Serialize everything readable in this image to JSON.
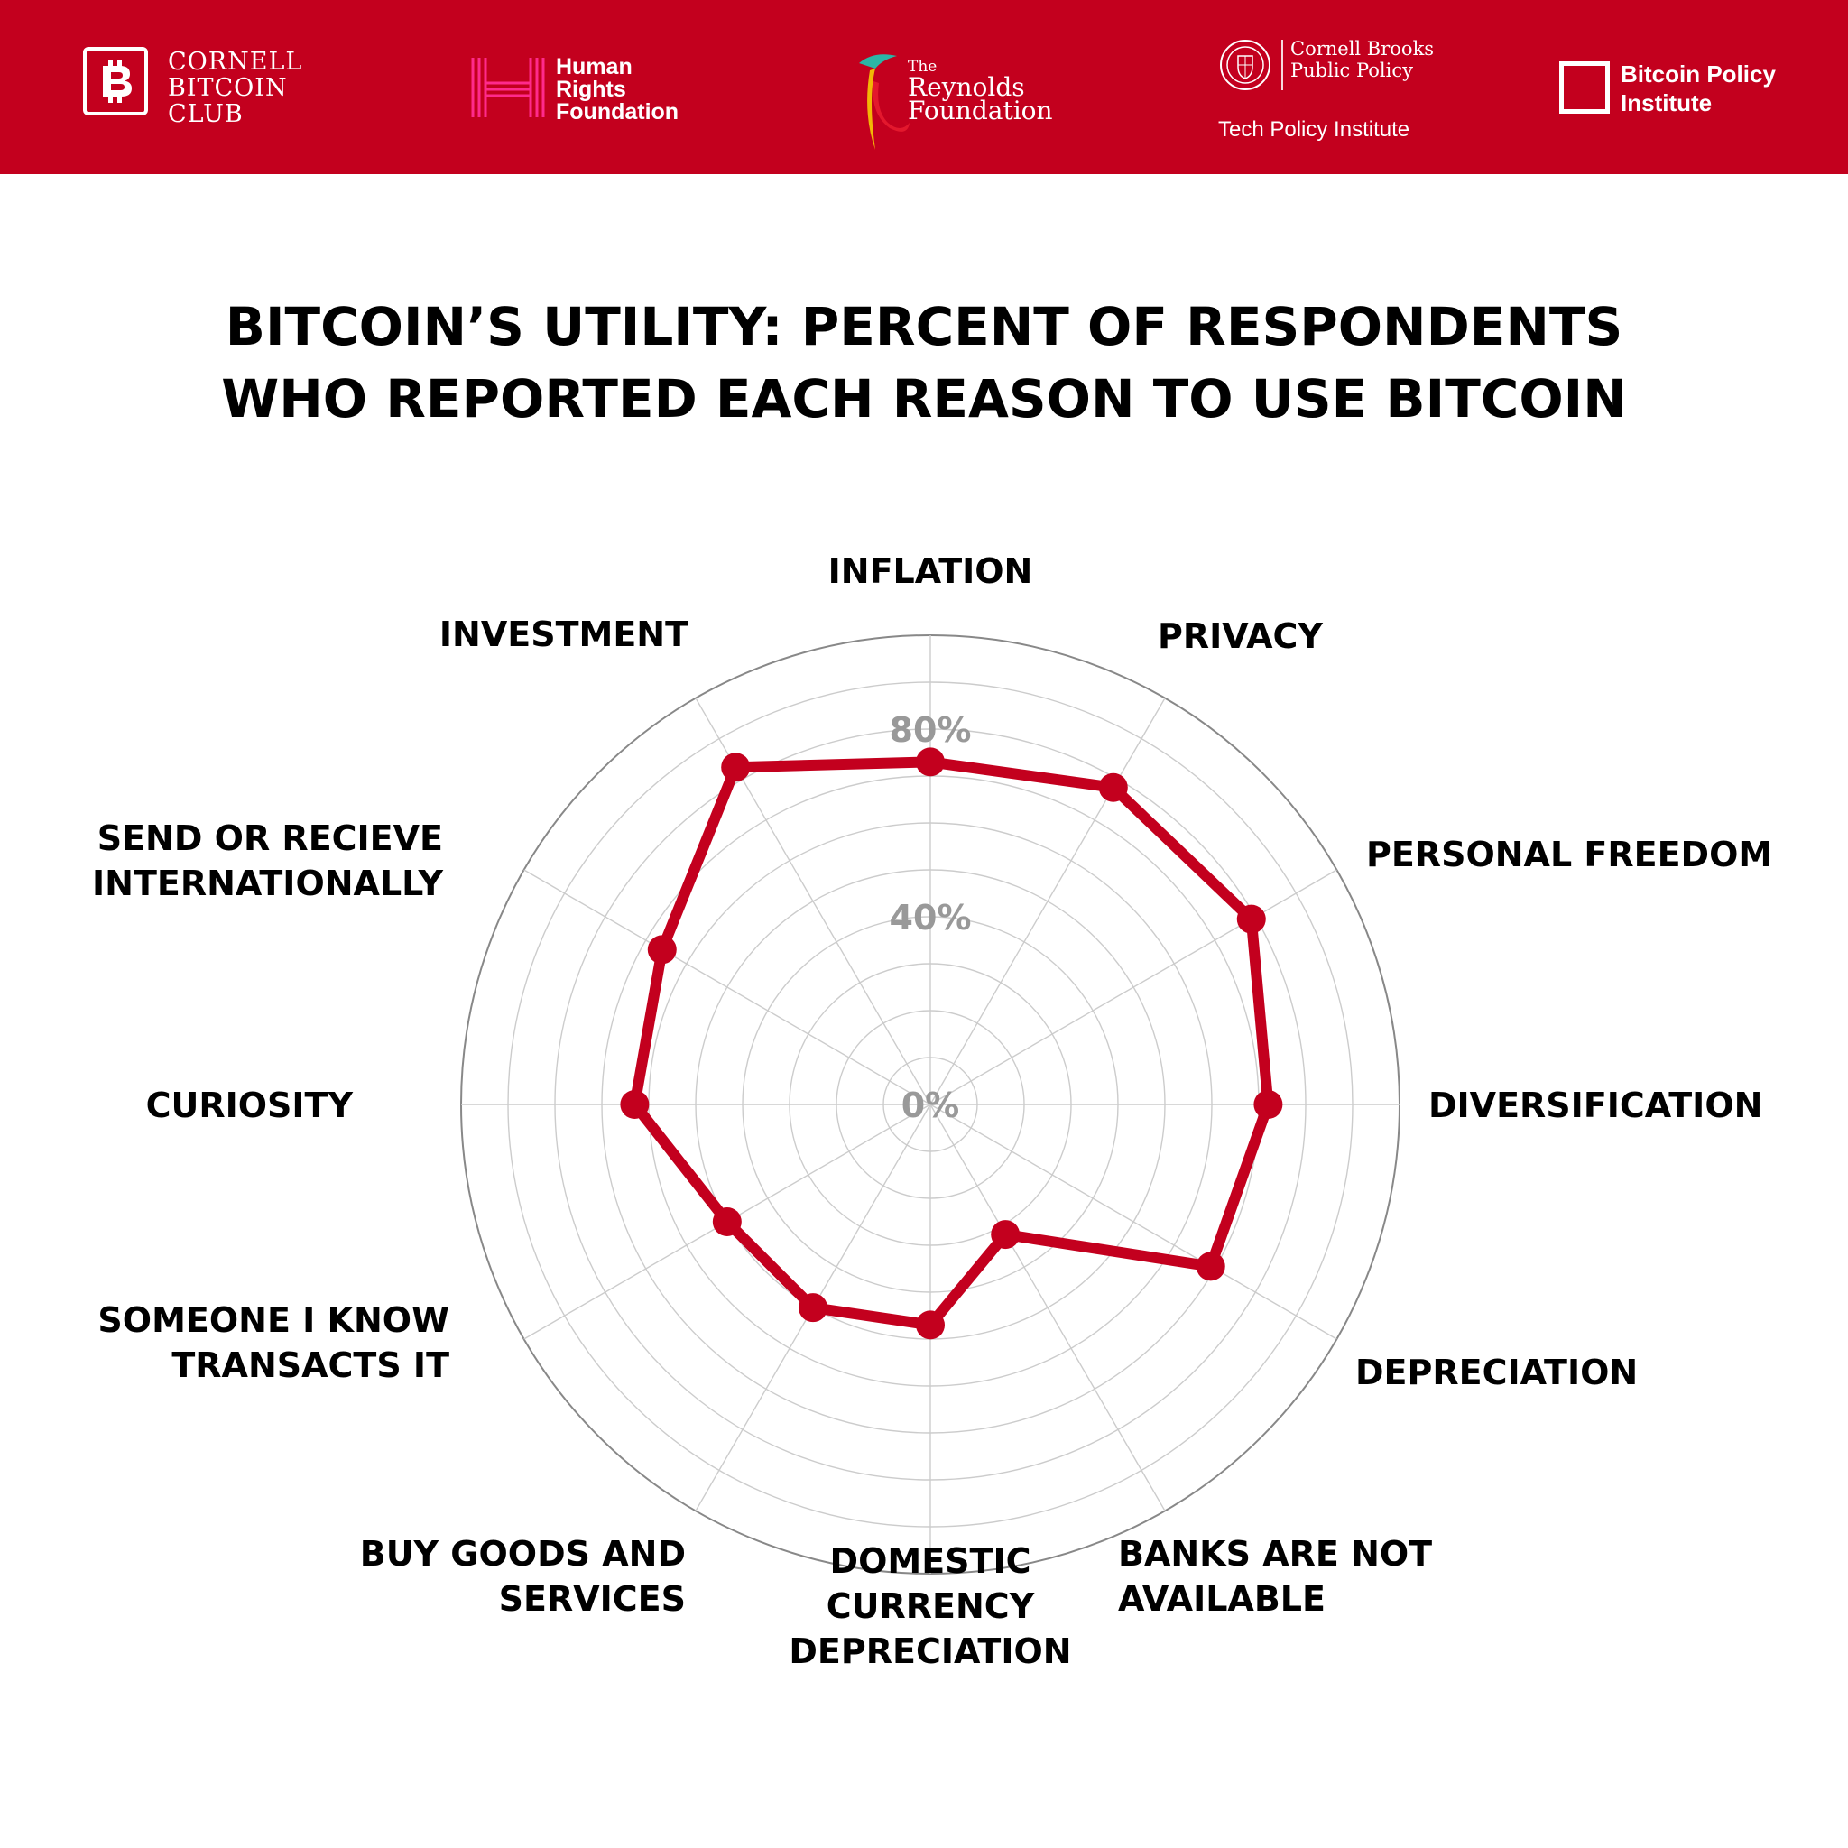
{
  "header": {
    "cornell_bitcoin_club": {
      "lines": [
        "CORNELL",
        "BITCOIN",
        "CLUB"
      ]
    },
    "human_rights_foundation": {
      "lines": [
        "Human",
        "Rights",
        "Foundation"
      ]
    },
    "reynolds_foundation": {
      "small": "The",
      "lines": [
        "Reynolds",
        "Foundation"
      ]
    },
    "cornell_brooks": {
      "lines": [
        "Cornell Brooks",
        "Public Policy"
      ],
      "sub": "Tech Policy Institute"
    },
    "bitcoin_policy_institute": {
      "lines": [
        "Bitcoin Policy",
        "Institute"
      ]
    }
  },
  "colors": {
    "banner": "#c3001e",
    "series": "#c3001e",
    "grid": "#cccccc",
    "outer_ring": "#888888",
    "tick": "#999999"
  },
  "chart_data": {
    "type": "radar",
    "title": [
      "BITCOIN’S UTILITY: PERCENT OF RESPONDENTS",
      "WHO REPORTED EACH REASON TO USE BITCOIN"
    ],
    "categories": [
      [
        "INFLATION"
      ],
      [
        "PRIVACY"
      ],
      [
        "PERSONAL FREEDOM"
      ],
      [
        "DIVERSIFICATION"
      ],
      [
        "DEPRECIATION"
      ],
      [
        "BANKS ARE NOT",
        "AVAILABLE"
      ],
      [
        "DOMESTIC",
        "CURRENCY",
        "DEPRECIATION"
      ],
      [
        "BUY GOODS AND",
        "SERVICES"
      ],
      [
        "SOMEONE I KNOW",
        "TRANSACTS IT"
      ],
      [
        "CURIOSITY"
      ],
      [
        "SEND OR RECIEVE",
        "INTERNATIONALLY"
      ],
      [
        "INVESTMENT"
      ]
    ],
    "values": [
      73,
      78,
      79,
      72,
      69,
      32,
      47,
      50,
      50,
      63,
      66,
      83
    ],
    "rlim": [
      0,
      100
    ],
    "rings": 10,
    "tick_labels": [
      {
        "value": 0,
        "label": "0%"
      },
      {
        "value": 40,
        "label": "40%"
      },
      {
        "value": 80,
        "label": "80%"
      }
    ],
    "grid": true,
    "legend": false
  }
}
